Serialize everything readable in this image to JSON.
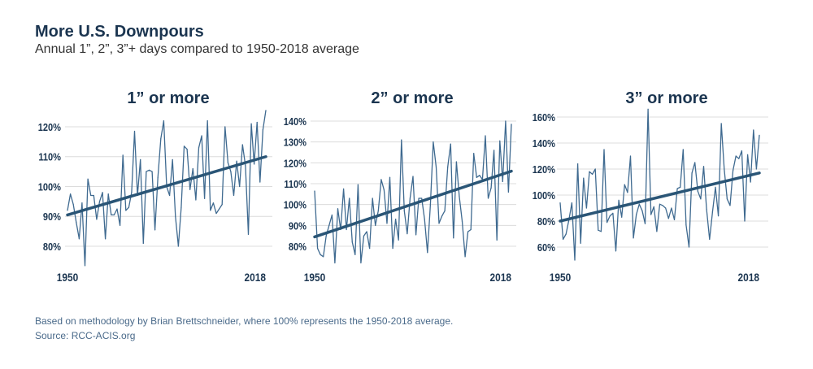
{
  "title": "More U.S. Downpours",
  "subtitle": "Annual 1”, 2”, 3”+ days compared to 1950-2018 average",
  "footnote": "Based on methodology by Brian Brettschneider, where 100% represents the 1950-2018 average.",
  "source": "Source: RCC-ACIS.org",
  "colors": {
    "line": "#3f6a90",
    "trend": "#2a5576",
    "text": "#1b3550",
    "grid": "#dcdcdc"
  },
  "chart_data": [
    {
      "type": "line",
      "title": "1” or more",
      "x_start": 1950,
      "x_end": 2018,
      "x_tick_labels": [
        "1950",
        "2018"
      ],
      "y_ticks": [
        80,
        90,
        100,
        110,
        120
      ],
      "y_tick_labels": [
        "80%",
        "90%",
        "100%",
        "110%",
        "120%"
      ],
      "grid": true,
      "values": [
        92,
        97.5,
        94,
        88,
        82.5,
        94.5,
        73.5,
        102.5,
        97,
        97,
        89,
        95,
        98,
        82.5,
        97.5,
        90.5,
        90.5,
        92.5,
        87,
        110.5,
        92,
        93,
        98,
        118.5,
        97,
        109,
        81,
        105,
        105.5,
        105,
        85.5,
        103,
        116,
        122,
        100,
        97,
        109,
        90,
        80,
        93,
        113.5,
        112.5,
        99,
        106,
        95.5,
        113,
        117,
        96,
        122,
        92,
        94.5,
        91,
        92.5,
        94,
        120,
        108,
        105,
        97,
        108.5,
        100,
        114,
        107,
        84,
        121,
        107.5,
        121.5,
        101.5,
        119,
        125.5
      ],
      "trend": [
        90.5,
        110
      ]
    },
    {
      "type": "line",
      "title": "2” or more",
      "x_start": 1950,
      "x_end": 2018,
      "x_tick_labels": [
        "1950",
        "2018"
      ],
      "y_ticks": [
        80,
        90,
        100,
        110,
        120,
        130,
        140
      ],
      "y_tick_labels": [
        "80%",
        "90%",
        "100%",
        "110%",
        "120%",
        "130%",
        "140%"
      ],
      "grid": true,
      "values": [
        106.5,
        79,
        76,
        75,
        85,
        90,
        95,
        72,
        98,
        88,
        107.5,
        88,
        103,
        82,
        76,
        109.5,
        72,
        85,
        87,
        79,
        103,
        90,
        97,
        112,
        107,
        91,
        113,
        79,
        93,
        83,
        131,
        97,
        86,
        103,
        113.5,
        85.5,
        103,
        103,
        93,
        77,
        100,
        130,
        118,
        91,
        94.5,
        97,
        118,
        129,
        84,
        120.5,
        104,
        92,
        75,
        87,
        88,
        124.5,
        113,
        114,
        112,
        133,
        103,
        108,
        126,
        83,
        130.5,
        111,
        140,
        106,
        138.5
      ],
      "trend": [
        84.5,
        116
      ]
    },
    {
      "type": "line",
      "title": "3” or more",
      "x_start": 1950,
      "x_end": 2018,
      "x_tick_labels": [
        "1950",
        "2018"
      ],
      "y_ticks": [
        60,
        80,
        100,
        120,
        140,
        160
      ],
      "y_tick_labels": [
        "60%",
        "80%",
        "100%",
        "120%",
        "140%",
        "160%"
      ],
      "grid": true,
      "values": [
        94,
        66,
        70,
        81,
        94,
        50,
        124,
        63,
        113,
        90,
        118,
        116,
        120,
        73,
        72,
        135,
        79,
        84,
        86,
        57,
        96,
        83,
        108,
        102,
        130,
        67,
        85,
        93,
        88,
        78,
        166,
        85,
        91,
        72,
        93,
        92,
        90,
        82,
        90,
        81,
        105,
        106,
        135,
        77,
        60,
        117,
        125,
        103,
        97,
        122,
        89,
        66,
        87,
        106,
        84,
        155,
        120,
        97,
        92,
        119,
        130,
        128,
        134,
        80,
        131,
        110,
        150,
        120,
        146
      ],
      "trend": [
        80,
        117
      ]
    }
  ]
}
